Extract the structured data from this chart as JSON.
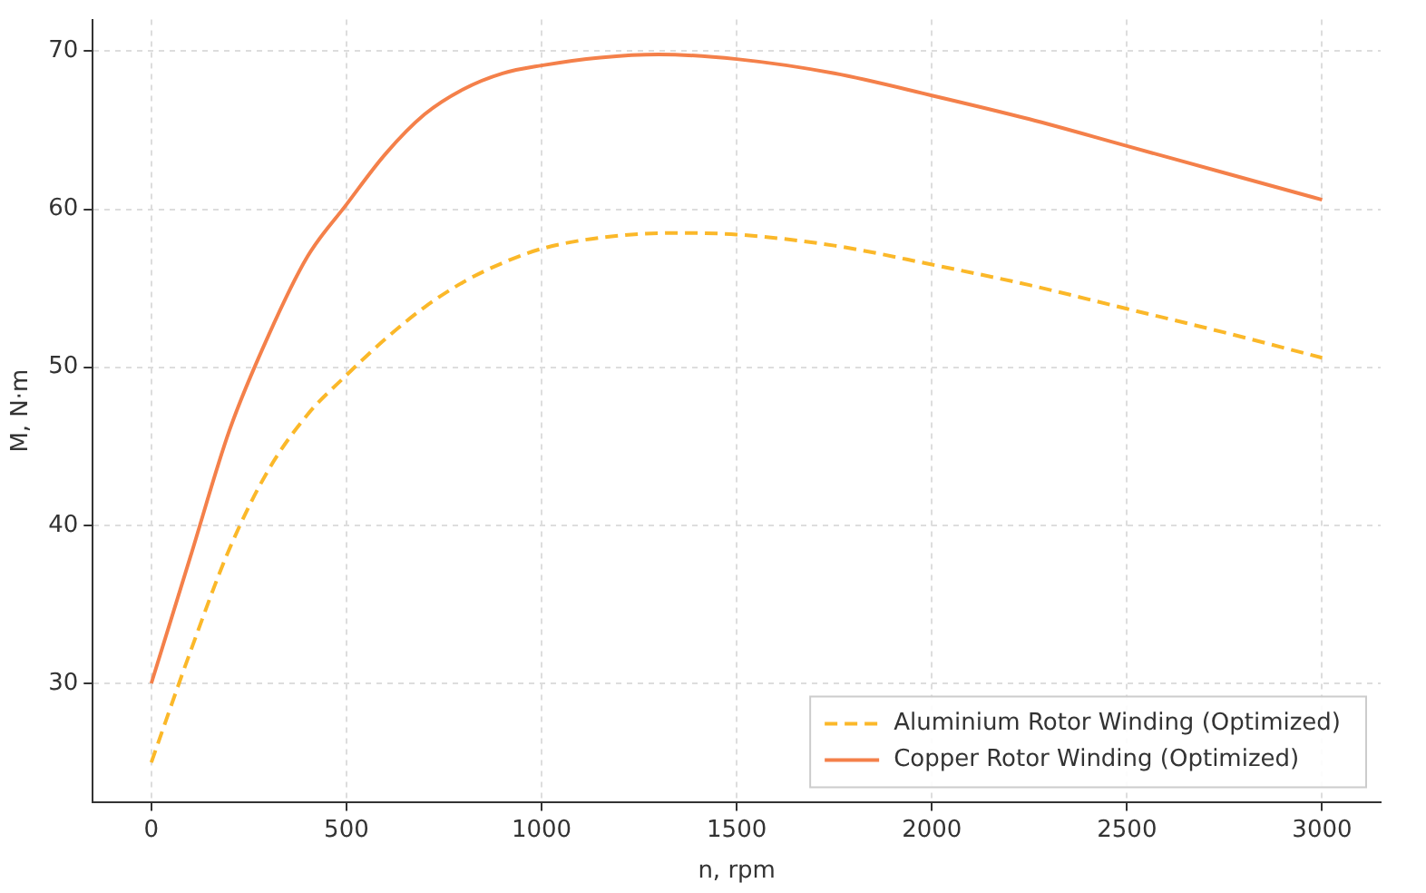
{
  "chart_data": {
    "type": "line",
    "xlabel": "n, rpm",
    "ylabel": "M, N·m",
    "xlim": [
      -150,
      3150
    ],
    "ylim": [
      22.5,
      72
    ],
    "xticks": [
      0,
      500,
      1000,
      1500,
      2000,
      2500,
      3000
    ],
    "yticks": [
      30,
      40,
      50,
      60,
      70
    ],
    "grid": true,
    "legend": "bottom right",
    "marker": "none",
    "series": [
      {
        "name": "Aluminium Rotor Winding (Optimized)",
        "color": "#fbb829",
        "line_style": "dashed",
        "x": [
          0,
          100,
          200,
          300,
          400,
          500,
          600,
          700,
          800,
          900,
          1000,
          1150,
          1350,
          1500,
          1750,
          2000,
          2250,
          2500,
          2750,
          3000
        ],
        "values": [
          25,
          32,
          38.5,
          43.5,
          47,
          49.5,
          51.8,
          53.8,
          55.4,
          56.6,
          57.5,
          58.2,
          58.5,
          58.4,
          57.7,
          56.5,
          55.2,
          53.7,
          52.2,
          50.6
        ]
      },
      {
        "name": "Copper Rotor Winding (Optimized)",
        "color": "#f4804a",
        "line_style": "solid",
        "x": [
          0,
          100,
          200,
          300,
          400,
          500,
          600,
          700,
          800,
          900,
          1000,
          1150,
          1300,
          1500,
          1750,
          2000,
          2250,
          2500,
          2750,
          3000
        ],
        "values": [
          30,
          38,
          46,
          52,
          57,
          60.3,
          63.5,
          66,
          67.6,
          68.6,
          69.1,
          69.6,
          69.8,
          69.5,
          68.6,
          67.2,
          65.7,
          64,
          62.3,
          60.6
        ]
      }
    ]
  }
}
